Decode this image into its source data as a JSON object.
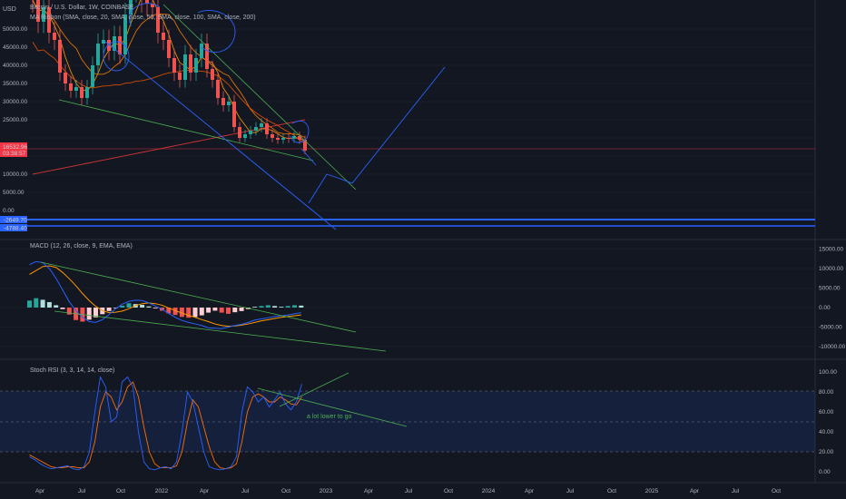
{
  "header": {
    "symbol_title": "Bitcoin / U.S. Dollar, 1W, COINBASE",
    "indicator_ma": "MA Ribbon (SMA, close, 20, SMA, close, 50, SMA, close, 100, SMA, close, 200)",
    "currency": "USD"
  },
  "price_badge": {
    "price": "16532.96",
    "countdown": "03:38:57",
    "color": "#f23645"
  },
  "blue_badges": [
    "-2649.70",
    "-4788.40"
  ],
  "macd_title": "MACD (12, 26, close, 9, EMA, EMA)",
  "rsi_title": "Stoch RSI (3, 3, 14, 14, close)",
  "annotation": "a lot lower to go",
  "colors": {
    "bg": "#131722",
    "up": "#26a69a",
    "down": "#ef5350",
    "blue": "#2962ff",
    "green": "#4caf50",
    "orange": "#f57c00",
    "red": "#e53935",
    "grid": "#1e222d"
  },
  "chart_data": [
    {
      "type": "candlestick",
      "title": "Bitcoin / U.S. Dollar, 1W, COINBASE",
      "ylabel": "USD",
      "y_ticks": [
        "50000.00",
        "45000.00",
        "40000.00",
        "35000.00",
        "30000.00",
        "25000.00",
        "20000.00",
        "15000.00",
        "10000.00",
        "5000.00",
        "0.00"
      ],
      "ylim": [
        -5000,
        57000
      ],
      "x_ticks": [
        "Apr",
        "Jul",
        "Oct",
        "2022",
        "Apr",
        "Jul",
        "Oct",
        "2023",
        "Apr",
        "Jul",
        "Oct",
        "2024",
        "Apr",
        "Jul",
        "Oct",
        "2025",
        "Apr",
        "Jul",
        "Oct"
      ],
      "close": [
        58000,
        52000,
        56000,
        49000,
        47000,
        38000,
        35000,
        33000,
        34000,
        31000,
        34000,
        40000,
        46000,
        47000,
        44000,
        48000,
        43000,
        54000,
        61000,
        62000,
        58000,
        57000,
        56000,
        49000,
        47000,
        42000,
        38000,
        36000,
        43000,
        38000,
        42000,
        46000,
        39000,
        36000,
        31000,
        29000,
        30000,
        23000,
        20000,
        21000,
        22000,
        23000,
        24000,
        21000,
        20000,
        19500,
        20000,
        19800,
        20500,
        19500,
        16500
      ],
      "series": [
        {
          "name": "SMA 20",
          "color": "#f57c00"
        },
        {
          "name": "SMA 50",
          "color": "#f57c00"
        },
        {
          "name": "SMA 100",
          "color": "#e65100"
        },
        {
          "name": "SMA 200",
          "color": "#e53935"
        }
      ]
    },
    {
      "type": "bar",
      "title": "MACD (12, 26, close, 9, EMA, EMA)",
      "y_ticks": [
        "15000.00",
        "10000.00",
        "5000.00",
        "0.00",
        "-5000.00",
        "-10000.00"
      ],
      "ylim": [
        -12000,
        16000
      ],
      "histogram": [
        1800,
        2400,
        2000,
        1400,
        600,
        -400,
        -1800,
        -3200,
        -3600,
        -3100,
        -2500,
        -1700,
        -900,
        -100,
        500,
        1100,
        900,
        700,
        300,
        -200,
        -800,
        -1500,
        -1900,
        -2400,
        -2600,
        -2400,
        -2000,
        -1300,
        -800,
        -1300,
        -1600,
        -1200,
        -900,
        -400,
        200,
        400,
        600,
        400,
        200,
        400,
        600,
        500
      ],
      "macd": [
        11000,
        11800,
        11500,
        10000,
        7500,
        4500,
        1500,
        -800,
        -2500,
        -3600,
        -3800,
        -3100,
        -1800,
        -300,
        900,
        1600,
        1900,
        1800,
        1200,
        400,
        -400,
        -1500,
        -2500,
        -3300,
        -3800,
        -4200,
        -4600,
        -5200,
        -5300,
        -5400,
        -5000,
        -4600,
        -4300,
        -3800,
        -3200,
        -2900,
        -2600,
        -2300,
        -2100,
        -1900,
        -1600,
        -1300
      ],
      "signal": [
        8500,
        9500,
        10500,
        10700,
        10300,
        9000,
        7400,
        5600,
        3600,
        1800,
        300,
        -800,
        -1300,
        -1200,
        -900,
        -300,
        500,
        1000,
        1200,
        1000,
        600,
        -100,
        -800,
        -1400,
        -2000,
        -2500,
        -3100,
        -3600,
        -4200,
        -4600,
        -4800,
        -4700,
        -4500,
        -4200,
        -3800,
        -3400,
        -3100,
        -2800,
        -2500,
        -2300,
        -2100,
        -1900
      ]
    },
    {
      "type": "line",
      "title": "Stoch RSI (3, 3, 14, 14, close)",
      "y_ticks": [
        "100.00",
        "80.00",
        "60.00",
        "40.00",
        "20.00",
        "0.00"
      ],
      "ylim": [
        -5,
        105
      ],
      "bands": [
        20,
        50,
        80
      ],
      "k": [
        15,
        12,
        8,
        5,
        3,
        4,
        5,
        6,
        3,
        2,
        5,
        20,
        60,
        95,
        85,
        50,
        55,
        90,
        95,
        85,
        40,
        10,
        3,
        2,
        4,
        5,
        3,
        10,
        40,
        80,
        70,
        45,
        20,
        5,
        3,
        2,
        3,
        5,
        15,
        60,
        85,
        80,
        70,
        75,
        65,
        72,
        80,
        68,
        62,
        70,
        88
      ],
      "d": [
        17,
        14,
        11,
        8,
        5,
        4,
        4,
        5,
        5,
        4,
        4,
        10,
        30,
        65,
        80,
        75,
        62,
        70,
        85,
        90,
        75,
        45,
        20,
        8,
        4,
        4,
        4,
        6,
        20,
        50,
        72,
        65,
        45,
        25,
        10,
        4,
        3,
        4,
        8,
        30,
        60,
        75,
        78,
        75,
        70,
        70,
        75,
        72,
        68,
        67,
        75
      ]
    }
  ]
}
